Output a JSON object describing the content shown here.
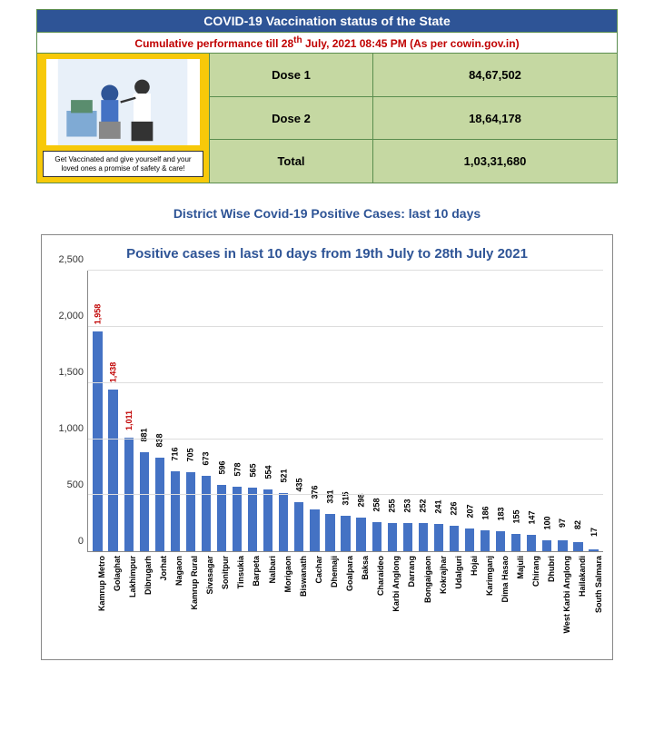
{
  "header": {
    "title": "COVID-19 Vaccination status of the State",
    "subtitle_prefix": "Cumulative performance till 28",
    "subtitle_sup": "th",
    "subtitle_suffix": " July, 2021 08:45 PM (As per cowin.gov.in)"
  },
  "promo": {
    "caption": "Get Vaccinated and give yourself and your loved ones a promise of safety & care!"
  },
  "doses": {
    "rows": [
      {
        "label": "Dose 1",
        "value": "84,67,502"
      },
      {
        "label": "Dose 2",
        "value": "18,64,178"
      },
      {
        "label": "Total",
        "value": "1,03,31,680"
      }
    ]
  },
  "section_heading": "District Wise Covid-19 Positive Cases: last 10 days",
  "chart": {
    "type": "bar",
    "title": "Positive cases in last 10 days from 19th July to 28th July 2021",
    "bar_color": "#4472c4",
    "highlight_color": "#c00000",
    "value_color": "#000000",
    "ymax": 2500,
    "ytick_step": 500,
    "yticks": [
      "0",
      "500",
      "1,000",
      "1,500",
      "2,000",
      "2,500"
    ],
    "data": [
      {
        "label": "Kamrup Metro",
        "value": 1958,
        "display": "1,958",
        "highlight": true
      },
      {
        "label": "Golaghat",
        "value": 1438,
        "display": "1,438",
        "highlight": true
      },
      {
        "label": "Lakhimpur",
        "value": 1011,
        "display": "1,011",
        "highlight": true
      },
      {
        "label": "Dibrugarh",
        "value": 881,
        "display": "881",
        "highlight": false
      },
      {
        "label": "Jorhat",
        "value": 838,
        "display": "838",
        "highlight": false
      },
      {
        "label": "Nagaon",
        "value": 716,
        "display": "716",
        "highlight": false
      },
      {
        "label": "Kamrup Rural",
        "value": 705,
        "display": "705",
        "highlight": false
      },
      {
        "label": "Sivasagar",
        "value": 673,
        "display": "673",
        "highlight": false
      },
      {
        "label": "Sonitpur",
        "value": 596,
        "display": "596",
        "highlight": false
      },
      {
        "label": "Tinsukia",
        "value": 578,
        "display": "578",
        "highlight": false
      },
      {
        "label": "Barpeta",
        "value": 565,
        "display": "565",
        "highlight": false
      },
      {
        "label": "Nalbari",
        "value": 554,
        "display": "554",
        "highlight": false
      },
      {
        "label": "Morigaon",
        "value": 521,
        "display": "521",
        "highlight": false
      },
      {
        "label": "Biswanath",
        "value": 435,
        "display": "435",
        "highlight": false
      },
      {
        "label": "Cachar",
        "value": 376,
        "display": "376",
        "highlight": false
      },
      {
        "label": "Dhemaji",
        "value": 331,
        "display": "331",
        "highlight": false
      },
      {
        "label": "Goalpara",
        "value": 315,
        "display": "315",
        "highlight": false
      },
      {
        "label": "Baksa",
        "value": 298,
        "display": "298",
        "highlight": false
      },
      {
        "label": "Charaideo",
        "value": 258,
        "display": "258",
        "highlight": false
      },
      {
        "label": "Karbi Anglong",
        "value": 255,
        "display": "255",
        "highlight": false
      },
      {
        "label": "Darrang",
        "value": 253,
        "display": "253",
        "highlight": false
      },
      {
        "label": "Bongaigaon",
        "value": 252,
        "display": "252",
        "highlight": false
      },
      {
        "label": "Kokrajhar",
        "value": 241,
        "display": "241",
        "highlight": false
      },
      {
        "label": "Udalguri",
        "value": 226,
        "display": "226",
        "highlight": false
      },
      {
        "label": "Hojai",
        "value": 207,
        "display": "207",
        "highlight": false
      },
      {
        "label": "Karimganj",
        "value": 186,
        "display": "186",
        "highlight": false
      },
      {
        "label": "Dima Hasao",
        "value": 183,
        "display": "183",
        "highlight": false
      },
      {
        "label": "Majuli",
        "value": 155,
        "display": "155",
        "highlight": false
      },
      {
        "label": "Chirang",
        "value": 147,
        "display": "147",
        "highlight": false
      },
      {
        "label": "Dhubri",
        "value": 100,
        "display": "100",
        "highlight": false
      },
      {
        "label": "West Karbi Anglong",
        "value": 97,
        "display": "97",
        "highlight": false
      },
      {
        "label": "Hailakandi",
        "value": 82,
        "display": "82",
        "highlight": false
      },
      {
        "label": "South Salmara",
        "value": 17,
        "display": "17",
        "highlight": false
      }
    ]
  }
}
